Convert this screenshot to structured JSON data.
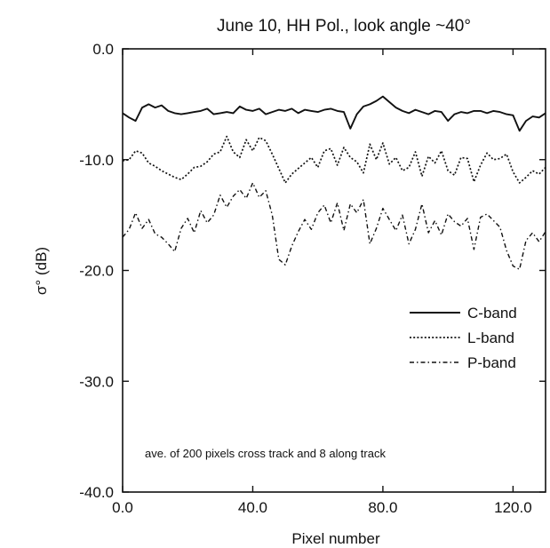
{
  "chart_data": {
    "type": "line",
    "title": "June 10, HH Pol., look angle ~40°",
    "xlabel": "Pixel number",
    "ylabel": "σ° (dB)",
    "xlim": [
      0,
      130
    ],
    "ylim": [
      -40,
      0
    ],
    "xticks": [
      "0.0",
      "40.0",
      "80.0",
      "120.0"
    ],
    "yticks": [
      "0.0",
      "-10.0",
      "-20.0",
      "-30.0",
      "-40.0"
    ],
    "grid": false,
    "legend_position": "right",
    "annotation": "ave. of 200 pixels cross track and 8 along track",
    "series": [
      {
        "name": "C-band",
        "style": "solid",
        "x": [
          0,
          2,
          4,
          6,
          8,
          10,
          12,
          14,
          16,
          18,
          20,
          22,
          24,
          26,
          28,
          30,
          32,
          34,
          36,
          38,
          40,
          42,
          44,
          46,
          48,
          50,
          52,
          54,
          56,
          58,
          60,
          62,
          64,
          66,
          68,
          70,
          72,
          74,
          76,
          78,
          80,
          82,
          84,
          86,
          88,
          90,
          92,
          94,
          96,
          98,
          100,
          102,
          104,
          106,
          108,
          110,
          112,
          114,
          116,
          118,
          120,
          122,
          124,
          126,
          128,
          130
        ],
        "values": [
          -5.8,
          -6.2,
          -6.5,
          -5.3,
          -5.0,
          -5.3,
          -5.1,
          -5.6,
          -5.8,
          -5.9,
          -5.8,
          -5.7,
          -5.6,
          -5.4,
          -5.9,
          -5.8,
          -5.7,
          -5.8,
          -5.2,
          -5.5,
          -5.6,
          -5.4,
          -5.9,
          -5.7,
          -5.5,
          -5.6,
          -5.4,
          -5.8,
          -5.5,
          -5.6,
          -5.7,
          -5.5,
          -5.4,
          -5.6,
          -5.7,
          -7.2,
          -5.9,
          -5.2,
          -5.0,
          -4.7,
          -4.3,
          -4.8,
          -5.3,
          -5.6,
          -5.8,
          -5.5,
          -5.7,
          -5.9,
          -5.6,
          -5.7,
          -6.5,
          -5.9,
          -5.7,
          -5.8,
          -5.6,
          -5.6,
          -5.8,
          -5.6,
          -5.7,
          -5.9,
          -6.0,
          -7.4,
          -6.5,
          -6.1,
          -6.2,
          -5.8
        ]
      },
      {
        "name": "L-band",
        "style": "dotted",
        "x": [
          0,
          2,
          4,
          6,
          8,
          10,
          12,
          14,
          16,
          18,
          20,
          22,
          24,
          26,
          28,
          30,
          32,
          34,
          36,
          38,
          40,
          42,
          44,
          46,
          48,
          50,
          52,
          54,
          56,
          58,
          60,
          62,
          64,
          66,
          68,
          70,
          72,
          74,
          76,
          78,
          80,
          82,
          84,
          86,
          88,
          90,
          92,
          94,
          96,
          98,
          100,
          102,
          104,
          106,
          108,
          110,
          112,
          114,
          116,
          118,
          120,
          122,
          124,
          126,
          128,
          130
        ],
        "values": [
          -10.1,
          -10.0,
          -9.2,
          -9.4,
          -10.3,
          -10.6,
          -11.0,
          -11.3,
          -11.6,
          -11.8,
          -11.3,
          -10.7,
          -10.6,
          -10.2,
          -9.5,
          -9.3,
          -7.9,
          -9.3,
          -9.8,
          -8.2,
          -9.2,
          -8.0,
          -8.3,
          -9.5,
          -10.8,
          -12.1,
          -11.3,
          -10.8,
          -10.3,
          -9.8,
          -10.7,
          -9.2,
          -9.0,
          -10.5,
          -8.9,
          -9.8,
          -10.2,
          -11.2,
          -8.6,
          -10.0,
          -8.5,
          -10.4,
          -9.8,
          -11.0,
          -10.7,
          -9.3,
          -11.5,
          -9.7,
          -10.3,
          -9.2,
          -11.0,
          -11.4,
          -9.8,
          -9.9,
          -12.0,
          -10.5,
          -9.4,
          -10.0,
          -9.9,
          -9.5,
          -11.1,
          -12.1,
          -11.6,
          -11.0,
          -11.3,
          -10.7
        ]
      },
      {
        "name": "P-band",
        "style": "dash-dot",
        "x": [
          0,
          2,
          4,
          6,
          8,
          10,
          12,
          14,
          16,
          18,
          20,
          22,
          24,
          26,
          28,
          30,
          32,
          34,
          36,
          38,
          40,
          42,
          44,
          46,
          48,
          50,
          52,
          54,
          56,
          58,
          60,
          62,
          64,
          66,
          68,
          70,
          72,
          74,
          76,
          78,
          80,
          82,
          84,
          86,
          88,
          90,
          92,
          94,
          96,
          98,
          100,
          102,
          104,
          106,
          108,
          110,
          112,
          114,
          116,
          118,
          120,
          122,
          124,
          126,
          128,
          130
        ],
        "values": [
          -17.0,
          -16.3,
          -14.8,
          -16.2,
          -15.4,
          -16.7,
          -17.0,
          -17.6,
          -18.3,
          -16.2,
          -15.3,
          -16.6,
          -14.6,
          -15.7,
          -15.0,
          -13.2,
          -14.3,
          -13.3,
          -12.7,
          -13.5,
          -12.1,
          -13.4,
          -12.8,
          -15.0,
          -19.0,
          -19.5,
          -17.8,
          -16.5,
          -15.4,
          -16.3,
          -14.8,
          -14.1,
          -15.7,
          -13.9,
          -16.4,
          -14.0,
          -14.8,
          -13.6,
          -17.6,
          -16.2,
          -14.4,
          -15.4,
          -16.4,
          -15.0,
          -17.6,
          -16.3,
          -14.0,
          -16.6,
          -15.5,
          -16.8,
          -14.9,
          -15.6,
          -16.0,
          -15.3,
          -18.1,
          -15.2,
          -14.9,
          -15.5,
          -16.1,
          -18.2,
          -19.6,
          -19.9,
          -17.3,
          -16.6,
          -17.4,
          -16.5
        ]
      }
    ]
  }
}
